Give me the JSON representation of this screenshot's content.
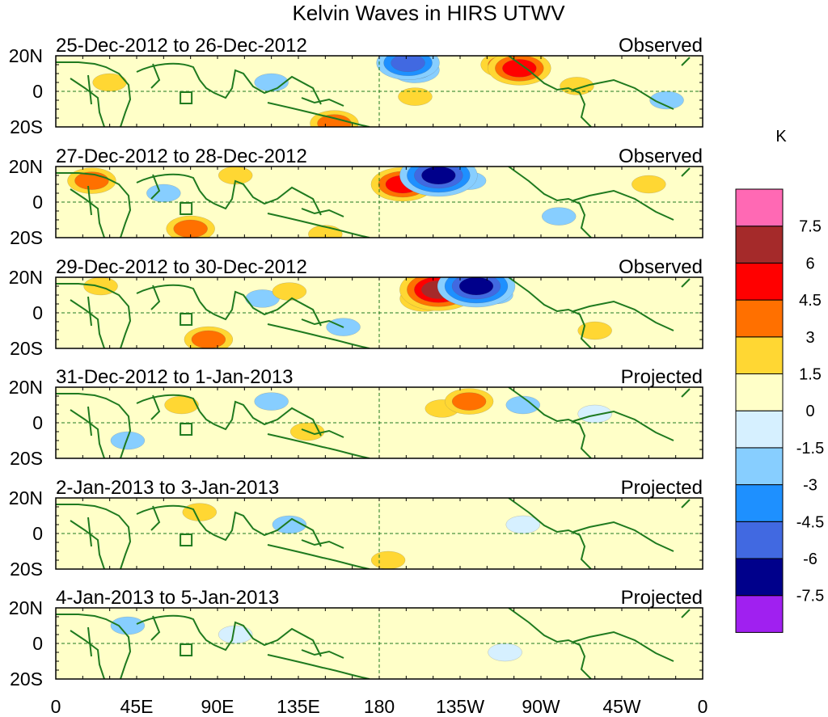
{
  "chart_data": {
    "type": "heatmap",
    "title": "Kelvin Waves in HIRS UTWV",
    "units": "K",
    "colorbar": {
      "colors": [
        "#a020f0",
        "#00008b",
        "#4169e1",
        "#1e90ff",
        "#87ceff",
        "#d6f0ff",
        "#ffffc8",
        "#ffd733",
        "#ff7000",
        "#ff0000",
        "#a52a2a",
        "#ff69b4"
      ],
      "levels": [
        -7.5,
        -6,
        -4.5,
        -3,
        -1.5,
        0,
        1.5,
        3,
        4.5,
        6,
        7.5
      ],
      "level_labels": [
        "-7.5",
        "-6",
        "-4.5",
        "-3",
        "-1.5",
        "0",
        "1.5",
        "3",
        "4.5",
        "6",
        "7.5"
      ]
    },
    "x_ticks": [
      "0",
      "45E",
      "90E",
      "135E",
      "180",
      "135W",
      "90W",
      "45W",
      "0"
    ],
    "y_ticks": [
      "20N",
      "0",
      "20S"
    ],
    "xlim": [
      0,
      360
    ],
    "ylim": [
      -20,
      20
    ],
    "panels": [
      {
        "date_range": "25-Dec-2012 to 26-Dec-2012",
        "status": "Observed",
        "anomalies": [
          {
            "lon": 196,
            "lat": 16,
            "value": -4.5
          },
          {
            "lon": 200,
            "lat": 12,
            "value": -3
          },
          {
            "lon": 250,
            "lat": 15,
            "value": 3
          },
          {
            "lon": 258,
            "lat": 13,
            "value": 4.5
          },
          {
            "lon": 30,
            "lat": 5,
            "value": 1.5
          },
          {
            "lon": 200,
            "lat": -3,
            "value": 1.5
          },
          {
            "lon": 155,
            "lat": -18,
            "value": 3
          },
          {
            "lon": 120,
            "lat": 5,
            "value": -1.5
          },
          {
            "lon": 290,
            "lat": 3,
            "value": 1.5
          },
          {
            "lon": 340,
            "lat": -5,
            "value": -1.5
          }
        ]
      },
      {
        "date_range": "27-Dec-2012 to 28-Dec-2012",
        "status": "Observed",
        "anomalies": [
          {
            "lon": 193,
            "lat": 10,
            "value": 4.5
          },
          {
            "lon": 213,
            "lat": 15,
            "value": -6
          },
          {
            "lon": 230,
            "lat": 12,
            "value": -1.5
          },
          {
            "lon": 20,
            "lat": 12,
            "value": 3
          },
          {
            "lon": 100,
            "lat": 15,
            "value": 1.5
          },
          {
            "lon": 75,
            "lat": -15,
            "value": 3
          },
          {
            "lon": 150,
            "lat": -18,
            "value": 1.5
          },
          {
            "lon": 280,
            "lat": -8,
            "value": -1.5
          },
          {
            "lon": 330,
            "lat": 10,
            "value": 1.5
          },
          {
            "lon": 60,
            "lat": 5,
            "value": -1.5
          }
        ]
      },
      {
        "date_range": "29-Dec-2012 to 30-Dec-2012",
        "status": "Observed",
        "anomalies": [
          {
            "lon": 213,
            "lat": 13,
            "value": 6
          },
          {
            "lon": 234,
            "lat": 15,
            "value": -6
          },
          {
            "lon": 205,
            "lat": 8,
            "value": 3
          },
          {
            "lon": 245,
            "lat": 10,
            "value": -1.5
          },
          {
            "lon": 115,
            "lat": 8,
            "value": -1.5
          },
          {
            "lon": 85,
            "lat": -15,
            "value": 3
          },
          {
            "lon": 25,
            "lat": 15,
            "value": 1.5
          },
          {
            "lon": 130,
            "lat": 12,
            "value": 1.5
          },
          {
            "lon": 300,
            "lat": -10,
            "value": 1.5
          },
          {
            "lon": 160,
            "lat": -8,
            "value": -1.5
          }
        ]
      },
      {
        "date_range": "31-Dec-2012 to 1-Jan-2013",
        "status": "Projected",
        "anomalies": [
          {
            "lon": 230,
            "lat": 12,
            "value": 3
          },
          {
            "lon": 215,
            "lat": 8,
            "value": 1.5
          },
          {
            "lon": 260,
            "lat": 10,
            "value": -1.5
          },
          {
            "lon": 70,
            "lat": 10,
            "value": 1.5
          },
          {
            "lon": 120,
            "lat": 12,
            "value": -1.5
          },
          {
            "lon": 140,
            "lat": -5,
            "value": 1.5
          },
          {
            "lon": 40,
            "lat": -10,
            "value": -1.5
          },
          {
            "lon": 300,
            "lat": 5,
            "value": 0
          }
        ]
      },
      {
        "date_range": "2-Jan-2013 to 3-Jan-2013",
        "status": "Projected",
        "anomalies": [
          {
            "lon": 80,
            "lat": 12,
            "value": 1.5
          },
          {
            "lon": 185,
            "lat": -15,
            "value": 1.5
          },
          {
            "lon": 130,
            "lat": 5,
            "value": -1.5
          },
          {
            "lon": 260,
            "lat": 5,
            "value": 0
          }
        ]
      },
      {
        "date_range": "4-Jan-2013 to 5-Jan-2013",
        "status": "Projected",
        "anomalies": [
          {
            "lon": 100,
            "lat": 5,
            "value": 0
          },
          {
            "lon": 250,
            "lat": -5,
            "value": 0
          },
          {
            "lon": 40,
            "lat": 10,
            "value": -1.5
          }
        ]
      }
    ]
  }
}
